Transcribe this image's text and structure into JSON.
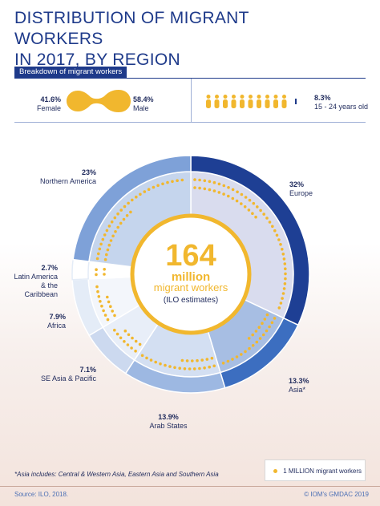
{
  "title_lines": [
    "DISTRIBUTION OF MIGRANT WORKERS",
    "IN 2017, BY REGION"
  ],
  "breakdown": {
    "header": "Breakdown of migrant workers",
    "female": {
      "pct": "41.6%",
      "label": "Female",
      "value": 41.6
    },
    "male": {
      "pct": "58.4%",
      "label": "Male",
      "value": 58.4
    },
    "youth": {
      "pct": "8.3%",
      "label": "15 - 24 years old",
      "value": 8.3
    }
  },
  "center": {
    "number": "164",
    "unit": "million",
    "subtitle": "migrant workers",
    "note": "(ILO estimates)"
  },
  "regions": [
    {
      "name": "Europe",
      "pct": "32%"
    },
    {
      "name": "Asia*",
      "pct": "13.3%"
    },
    {
      "name": "Arab States",
      "pct": "13.9%"
    },
    {
      "name": "SE Asia & Pacific",
      "pct": "7.1%"
    },
    {
      "name": "Africa",
      "pct": "7.9%"
    },
    {
      "name": "Latin America & the Caribbean",
      "name_lines": [
        "Latin America",
        "& the Caribbean"
      ],
      "pct": "2.7%"
    },
    {
      "name": "Northern America",
      "pct": "23%"
    }
  ],
  "chart_data": {
    "type": "pie",
    "unit": "%",
    "total": "164 million",
    "categories": [
      "Europe",
      "Asia*",
      "Arab States",
      "SE Asia & Pacific",
      "Africa",
      "Latin America & the Caribbean",
      "Northern America"
    ],
    "values": [
      32,
      13.3,
      13.9,
      7.1,
      7.9,
      2.7,
      23
    ],
    "colors": [
      "#1e3f94",
      "#3c6ec0",
      "#9db8e2",
      "#ccd9ef",
      "#e4ecf7",
      "#ffffff",
      "#7ea1d8"
    ],
    "dot_unit": "1 MILLION migrant workers",
    "dot_color": "#f1b72e"
  },
  "footnote": "*Asia includes: Central & Western Asia, Eastern Asia and Southern Asia",
  "legend": {
    "label": "1 MILLION migrant workers"
  },
  "source": "Source: ILO, 2018.",
  "credit": "© IOM's GMDAC 2019",
  "colors": {
    "accent": "#1e3a8a",
    "gold": "#f1b72e"
  }
}
